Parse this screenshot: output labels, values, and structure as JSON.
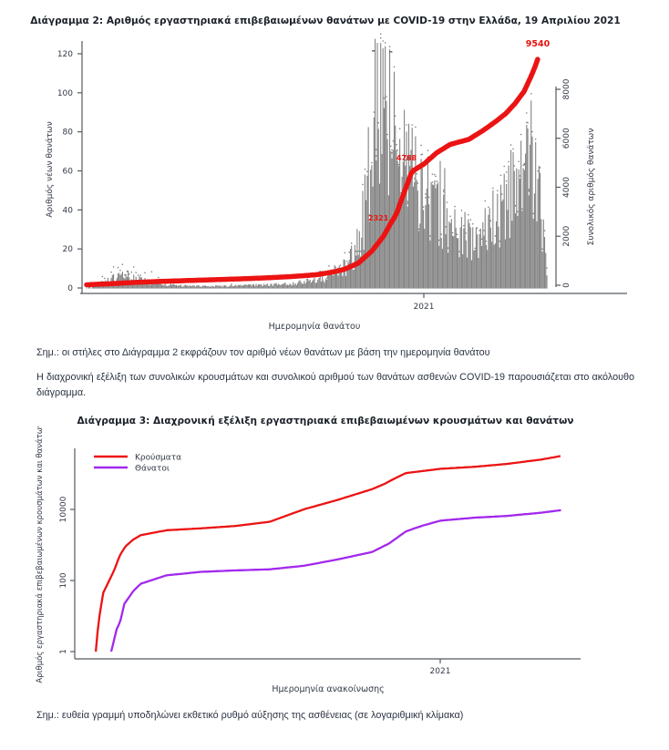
{
  "page": {
    "note_chart2": "Σημ.: οι στήλες στο Διάγραμμα 2 εκφράζουν τον αριθμό νέων θανάτων με βάση την ημερομηνία θανάτου",
    "paragraph": "Η διαχρονική εξέλιξη των συνολικών κρουσμάτων και συνολικού αριθμού των θανάτων ασθενών COVID-19 παρουσιάζεται στο ακόλουθο διάγραμμα.",
    "note_chart3": "Σημ.: ευθεία γραμμή υποδηλώνει εκθετικό ρυθμό αύξησης της ασθένειας (σε λογαριθμική κλίμακα)"
  },
  "colors": {
    "red_line": "#ec1313",
    "purple_line": "#a228ee",
    "bar_gray": "#828282",
    "marker_gray": "#5e5e5e",
    "axis": "#555a60",
    "tick_text": "#333a46",
    "annotation_red": "#e8130f"
  },
  "chart_data": [
    {
      "type": "bar",
      "title": "Διάγραμμα 2: Αριθμός εργαστηριακά επιβεβαιωμένων θανάτων με COVID-19 στην Ελλάδα, 19 Απριλίου 2021",
      "xlabel": "Ημερομηνία θανάτου",
      "ylabel_left": "Αριθμός νέων θανάτων",
      "ylabel_right": "Συνολικός αριθμός θανάτων",
      "x_ticks": [
        "2021"
      ],
      "y_ticks_left": [
        0,
        20,
        40,
        60,
        80,
        100,
        120
      ],
      "y_ticks_right": [
        0,
        2000,
        4000,
        6000,
        8000
      ],
      "ylim_left": [
        0,
        128
      ],
      "ylim_right": [
        0,
        9600
      ],
      "legend_position": "none",
      "grid": false,
      "bars_profile_new_deaths": [
        [
          0.0,
          0.3
        ],
        [
          0.025,
          2
        ],
        [
          0.06,
          5
        ],
        [
          0.09,
          6
        ],
        [
          0.12,
          4
        ],
        [
          0.16,
          2
        ],
        [
          0.22,
          1
        ],
        [
          0.3,
          1
        ],
        [
          0.38,
          1.5
        ],
        [
          0.44,
          2
        ],
        [
          0.5,
          4
        ],
        [
          0.54,
          7
        ],
        [
          0.57,
          12
        ],
        [
          0.595,
          25
        ],
        [
          0.615,
          60
        ],
        [
          0.63,
          95
        ],
        [
          0.645,
          100
        ],
        [
          0.66,
          88
        ],
        [
          0.675,
          72
        ],
        [
          0.7,
          62
        ],
        [
          0.733,
          50
        ],
        [
          0.76,
          38
        ],
        [
          0.8,
          28
        ],
        [
          0.84,
          25
        ],
        [
          0.87,
          28
        ],
        [
          0.9,
          38
        ],
        [
          0.93,
          52
        ],
        [
          0.95,
          60
        ],
        [
          0.965,
          66
        ],
        [
          0.978,
          60
        ],
        [
          0.988,
          40
        ],
        [
          1.0,
          10
        ]
      ],
      "line_cumulative_deaths": [
        [
          0.0,
          20
        ],
        [
          0.05,
          60
        ],
        [
          0.1,
          110
        ],
        [
          0.15,
          150
        ],
        [
          0.2,
          180
        ],
        [
          0.25,
          210
        ],
        [
          0.3,
          240
        ],
        [
          0.35,
          270
        ],
        [
          0.4,
          310
        ],
        [
          0.45,
          360
        ],
        [
          0.5,
          430
        ],
        [
          0.53,
          520
        ],
        [
          0.56,
          650
        ],
        [
          0.59,
          900
        ],
        [
          0.62,
          1400
        ],
        [
          0.645,
          2000
        ],
        [
          0.66,
          2500
        ],
        [
          0.673,
          2900
        ],
        [
          0.69,
          3800
        ],
        [
          0.707,
          4650
        ],
        [
          0.733,
          4950
        ],
        [
          0.76,
          5400
        ],
        [
          0.79,
          5750
        ],
        [
          0.83,
          5953
        ],
        [
          0.86,
          6300
        ],
        [
          0.89,
          6700
        ],
        [
          0.91,
          7000
        ],
        [
          0.93,
          7400
        ],
        [
          0.95,
          7900
        ],
        [
          0.965,
          8500
        ],
        [
          0.978,
          9100
        ],
        [
          0.985,
          9540
        ]
      ],
      "annotations": [
        {
          "text": "2321",
          "t": 0.612,
          "v": 2650
        },
        {
          "text": "4788",
          "t": 0.673,
          "v": 5100
        },
        {
          "text": "9540",
          "t": 0.954,
          "v": 9750
        }
      ]
    },
    {
      "type": "line",
      "title": "Διάγραμμα 3: Διαχρονική εξέλιξη εργαστηριακά επιβεβαιωμένων κρουσμάτων και θανάτων",
      "xlabel": "Ημερομηνία ανακοίνωσης",
      "ylabel": "Αριθμός εργαστηριακά επιβεβαιωμένων κρουσμάτων και θανάτων",
      "y_scale": "log",
      "y_ticks": [
        1,
        100,
        10000
      ],
      "x_ticks": [
        "2021"
      ],
      "grid": false,
      "legend_position": "top-left",
      "legend": [
        {
          "label": "Κρούσματα",
          "color": "#ec1313"
        },
        {
          "label": "Θάνατοι",
          "color": "#a228ee"
        }
      ],
      "series": [
        {
          "name": "Κρούσματα",
          "points": [
            [
              0.004,
              1
            ],
            [
              0.01,
              7
            ],
            [
              0.02,
              45
            ],
            [
              0.031,
              89
            ],
            [
              0.043,
              190
            ],
            [
              0.055,
              495
            ],
            [
              0.067,
              900
            ],
            [
              0.084,
              1415
            ],
            [
              0.1,
              1885
            ],
            [
              0.155,
              2591
            ],
            [
              0.229,
              2937
            ],
            [
              0.301,
              3409
            ],
            [
              0.375,
              4477
            ],
            [
              0.449,
              10134
            ],
            [
              0.52,
              18475
            ],
            [
              0.594,
              37196
            ],
            [
              0.62,
              52000
            ],
            [
              0.64,
              72000
            ],
            [
              0.666,
              105271
            ],
            [
              0.74,
              138850
            ],
            [
              0.814,
              158716
            ],
            [
              0.881,
              190235
            ],
            [
              0.955,
              252806
            ],
            [
              0.998,
              320629
            ]
          ]
        },
        {
          "name": "Θάνατοι",
          "points": [
            [
              0.037,
              1
            ],
            [
              0.05,
              5
            ],
            [
              0.055,
              6
            ],
            [
              0.065,
              22
            ],
            [
              0.084,
              50
            ],
            [
              0.1,
              81
            ],
            [
              0.155,
              140
            ],
            [
              0.229,
              175
            ],
            [
              0.301,
              192
            ],
            [
              0.375,
              206
            ],
            [
              0.449,
              260
            ],
            [
              0.52,
              391
            ],
            [
              0.594,
              635
            ],
            [
              0.63,
              1100
            ],
            [
              0.666,
              2406
            ],
            [
              0.7,
              3450
            ],
            [
              0.74,
              4838
            ],
            [
              0.814,
              5878
            ],
            [
              0.881,
              6534
            ],
            [
              0.955,
              8093
            ],
            [
              0.998,
              9540
            ]
          ]
        }
      ]
    }
  ]
}
